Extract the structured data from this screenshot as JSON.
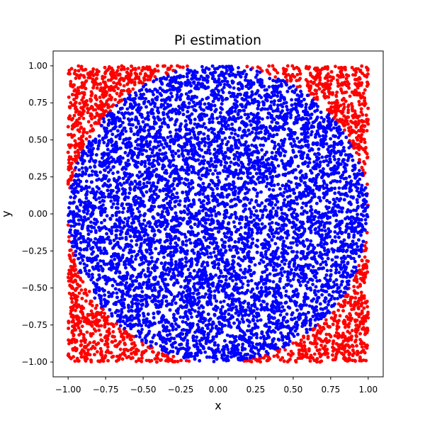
{
  "chart_data": {
    "type": "scatter",
    "title": "Pi estimation",
    "xlabel": "x",
    "ylabel": "y",
    "xlim": [
      -1.1,
      1.1
    ],
    "ylim": [
      -1.1,
      1.1
    ],
    "grid": false,
    "xticks": [
      -1.0,
      -0.75,
      -0.5,
      -0.25,
      0.0,
      0.25,
      0.5,
      0.75,
      1.0
    ],
    "yticks": [
      -1.0,
      -0.75,
      -0.5,
      -0.25,
      0.0,
      0.25,
      0.5,
      0.75,
      1.0
    ],
    "xtick_labels": [
      "−1.00",
      "−0.75",
      "−0.50",
      "−0.25",
      "0.00",
      "0.25",
      "0.50",
      "0.75",
      "1.00"
    ],
    "ytick_labels": [
      "−1.00",
      "−0.75",
      "−0.50",
      "−0.25",
      "0.00",
      "0.25",
      "0.50",
      "0.75",
      "1.00"
    ],
    "series": [
      {
        "category": "outside",
        "color": "#ff0000",
        "region": "uniform random points in [-1,1]×[-1,1] with x²+y²>1"
      },
      {
        "category": "inside",
        "color": "#0000ff",
        "region": "uniform random points in [-1,1]×[-1,1] with x²+y²≤1"
      }
    ]
  }
}
